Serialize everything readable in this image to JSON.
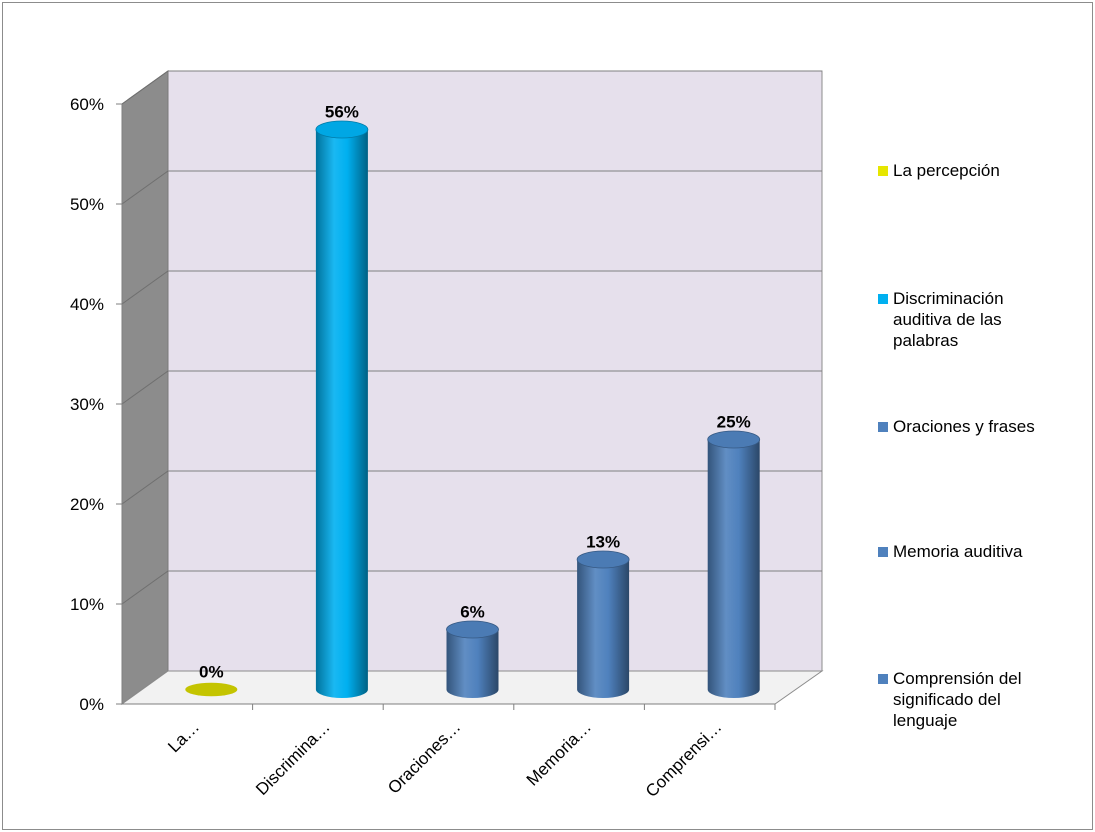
{
  "chart_data": {
    "type": "bar",
    "style": "3d-cylinder",
    "categories": [
      "La…",
      "Discrimina…",
      "Oraciones…",
      "Memoria…",
      "Comprensi…"
    ],
    "values": [
      0,
      56,
      6,
      13,
      25
    ],
    "data_labels": [
      "0%",
      "56%",
      "6%",
      "13%",
      "25%"
    ],
    "y_ticks": [
      "0%",
      "10%",
      "20%",
      "30%",
      "40%",
      "50%",
      "60%"
    ],
    "ylim": [
      0,
      60
    ],
    "grid": true,
    "legend_position": "right",
    "legend": [
      {
        "label": "La percepción",
        "color": "#e6e600"
      },
      {
        "label": "Discriminación auditiva de las palabras",
        "color": "#00b0f0"
      },
      {
        "label": "Oraciones y frases",
        "color": "#4f81bd"
      },
      {
        "label": "Memoria auditiva",
        "color": "#4f81bd"
      },
      {
        "label": "Comprensión del significado del lenguaje",
        "color": "#4f81bd"
      }
    ],
    "colors": [
      "#e6e600",
      "#00b0f0",
      "#4f81bd",
      "#4f81bd",
      "#4f81bd"
    ],
    "wall_color": "#e6e0ec",
    "side_wall_color": "#8c8c8c"
  }
}
